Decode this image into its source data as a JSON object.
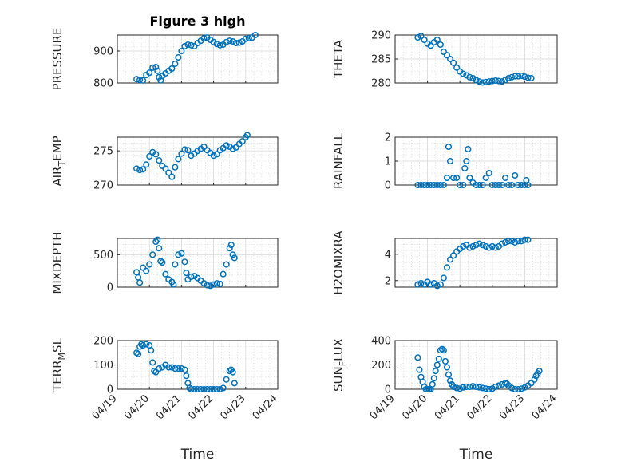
{
  "figure": {
    "title": "Figure 3 high",
    "marker_color": "#0072bd"
  },
  "chart_data": [
    {
      "type": "scatter",
      "position": "top-left",
      "title": "Figure 3 high",
      "ylabel": "PRESSURE",
      "ylim": [
        800,
        950
      ],
      "yticks": [
        800,
        900
      ],
      "xlim": [
        "04/19",
        "04/24"
      ],
      "xticks": [],
      "xlabel": "",
      "points": [
        [
          19.6,
          812
        ],
        [
          19.7,
          810
        ],
        [
          19.8,
          808
        ],
        [
          19.9,
          825
        ],
        [
          20.0,
          832
        ],
        [
          20.1,
          848
        ],
        [
          20.2,
          850
        ],
        [
          20.25,
          838
        ],
        [
          20.3,
          818
        ],
        [
          20.35,
          808
        ],
        [
          20.4,
          822
        ],
        [
          20.5,
          830
        ],
        [
          20.6,
          838
        ],
        [
          20.7,
          845
        ],
        [
          20.8,
          860
        ],
        [
          20.9,
          880
        ],
        [
          21.0,
          900
        ],
        [
          21.1,
          915
        ],
        [
          21.2,
          920
        ],
        [
          21.3,
          918
        ],
        [
          21.4,
          915
        ],
        [
          21.5,
          925
        ],
        [
          21.6,
          932
        ],
        [
          21.7,
          940
        ],
        [
          21.8,
          942
        ],
        [
          21.9,
          935
        ],
        [
          22.0,
          928
        ],
        [
          22.1,
          922
        ],
        [
          22.2,
          918
        ],
        [
          22.3,
          920
        ],
        [
          22.4,
          928
        ],
        [
          22.5,
          932
        ],
        [
          22.6,
          930
        ],
        [
          22.7,
          925
        ],
        [
          22.8,
          926
        ],
        [
          22.9,
          930
        ],
        [
          23.0,
          938
        ],
        [
          23.1,
          940
        ],
        [
          23.2,
          942
        ],
        [
          23.3,
          950
        ]
      ]
    },
    {
      "type": "scatter",
      "position": "top-right",
      "ylabel": "THETA",
      "ylim": [
        280,
        290
      ],
      "yticks": [
        280,
        285,
        290
      ],
      "xlim": [
        "04/19",
        "04/24"
      ],
      "xticks": [],
      "xlabel": "",
      "points": [
        [
          19.7,
          289.5
        ],
        [
          19.8,
          289.8
        ],
        [
          19.9,
          289.0
        ],
        [
          20.0,
          288.2
        ],
        [
          20.1,
          287.8
        ],
        [
          20.2,
          288.5
        ],
        [
          20.3,
          289.0
        ],
        [
          20.4,
          288.0
        ],
        [
          20.5,
          286.5
        ],
        [
          20.6,
          285.8
        ],
        [
          20.7,
          285.0
        ],
        [
          20.8,
          284.2
        ],
        [
          20.9,
          283.2
        ],
        [
          21.0,
          282.4
        ],
        [
          21.1,
          281.9
        ],
        [
          21.2,
          281.6
        ],
        [
          21.3,
          281.2
        ],
        [
          21.4,
          281.0
        ],
        [
          21.5,
          280.6
        ],
        [
          21.6,
          280.3
        ],
        [
          21.7,
          280.1
        ],
        [
          21.8,
          280.2
        ],
        [
          21.9,
          280.3
        ],
        [
          22.0,
          280.4
        ],
        [
          22.1,
          280.5
        ],
        [
          22.2,
          280.4
        ],
        [
          22.3,
          280.3
        ],
        [
          22.4,
          280.6
        ],
        [
          22.5,
          281.0
        ],
        [
          22.6,
          281.2
        ],
        [
          22.7,
          281.4
        ],
        [
          22.8,
          281.4
        ],
        [
          22.9,
          281.5
        ],
        [
          23.0,
          281.3
        ],
        [
          23.1,
          281.1
        ],
        [
          23.2,
          281.0
        ]
      ]
    },
    {
      "type": "scatter",
      "position": "row2-left",
      "ylabel": "AIR_TEMP",
      "ylim": [
        270,
        277
      ],
      "yticks": [
        270,
        275
      ],
      "xlim": [
        "04/19",
        "04/24"
      ],
      "xticks": [],
      "xlabel": "",
      "points": [
        [
          19.6,
          272.4
        ],
        [
          19.7,
          272.2
        ],
        [
          19.8,
          272.3
        ],
        [
          19.9,
          273.0
        ],
        [
          20.0,
          274.2
        ],
        [
          20.1,
          274.8
        ],
        [
          20.2,
          274.5
        ],
        [
          20.3,
          273.6
        ],
        [
          20.4,
          272.8
        ],
        [
          20.5,
          272.4
        ],
        [
          20.6,
          271.8
        ],
        [
          20.7,
          271.2
        ],
        [
          20.8,
          272.6
        ],
        [
          20.9,
          273.8
        ],
        [
          21.0,
          274.6
        ],
        [
          21.1,
          275.2
        ],
        [
          21.2,
          275.1
        ],
        [
          21.3,
          274.3
        ],
        [
          21.4,
          274.6
        ],
        [
          21.5,
          275.0
        ],
        [
          21.6,
          275.3
        ],
        [
          21.7,
          275.6
        ],
        [
          21.8,
          275.1
        ],
        [
          21.9,
          274.7
        ],
        [
          22.0,
          274.3
        ],
        [
          22.1,
          274.5
        ],
        [
          22.2,
          275.1
        ],
        [
          22.3,
          275.4
        ],
        [
          22.4,
          275.8
        ],
        [
          22.5,
          275.6
        ],
        [
          22.6,
          275.3
        ],
        [
          22.7,
          275.5
        ],
        [
          22.8,
          276.0
        ],
        [
          22.9,
          276.4
        ],
        [
          23.0,
          277.0
        ],
        [
          23.05,
          277.3
        ]
      ]
    },
    {
      "type": "scatter",
      "position": "row2-right",
      "ylabel": "RAINFALL",
      "ylim": [
        0,
        2
      ],
      "yticks": [
        0,
        1,
        2
      ],
      "xlim": [
        "04/19",
        "04/24"
      ],
      "xticks": [],
      "xlabel": "",
      "points": [
        [
          19.7,
          0
        ],
        [
          19.8,
          0
        ],
        [
          19.9,
          0
        ],
        [
          20.0,
          0
        ],
        [
          20.1,
          0
        ],
        [
          20.2,
          0
        ],
        [
          20.3,
          0
        ],
        [
          20.4,
          0
        ],
        [
          20.5,
          0
        ],
        [
          20.6,
          0.3
        ],
        [
          20.65,
          1.6
        ],
        [
          20.7,
          1.0
        ],
        [
          20.8,
          0.3
        ],
        [
          20.9,
          0.3
        ],
        [
          21.0,
          0
        ],
        [
          21.1,
          0
        ],
        [
          21.15,
          0.7
        ],
        [
          21.2,
          1.0
        ],
        [
          21.25,
          1.5
        ],
        [
          21.3,
          0.3
        ],
        [
          21.4,
          0.1
        ],
        [
          21.5,
          0
        ],
        [
          21.6,
          0
        ],
        [
          21.7,
          0
        ],
        [
          21.8,
          0.3
        ],
        [
          21.9,
          0.5
        ],
        [
          22.0,
          0
        ],
        [
          22.1,
          0
        ],
        [
          22.2,
          0
        ],
        [
          22.3,
          0
        ],
        [
          22.4,
          0.3
        ],
        [
          22.5,
          0
        ],
        [
          22.6,
          0
        ],
        [
          22.7,
          0.4
        ],
        [
          22.8,
          0
        ],
        [
          22.9,
          0
        ],
        [
          23.0,
          0
        ],
        [
          23.05,
          0.2
        ],
        [
          23.1,
          0
        ]
      ]
    },
    {
      "type": "scatter",
      "position": "row3-left",
      "ylabel": "MIXDEPTH",
      "ylim": [
        0,
        750
      ],
      "yticks": [
        0,
        500
      ],
      "xlim": [
        "04/19",
        "04/24"
      ],
      "xticks": [],
      "xlabel": "",
      "points": [
        [
          19.6,
          230
        ],
        [
          19.65,
          150
        ],
        [
          19.7,
          70
        ],
        [
          19.8,
          300
        ],
        [
          19.9,
          250
        ],
        [
          20.0,
          350
        ],
        [
          20.1,
          500
        ],
        [
          20.2,
          700
        ],
        [
          20.25,
          730
        ],
        [
          20.3,
          600
        ],
        [
          20.35,
          400
        ],
        [
          20.4,
          380
        ],
        [
          20.5,
          200
        ],
        [
          20.6,
          120
        ],
        [
          20.7,
          80
        ],
        [
          20.75,
          40
        ],
        [
          20.8,
          350
        ],
        [
          20.9,
          500
        ],
        [
          21.0,
          520
        ],
        [
          21.1,
          390
        ],
        [
          21.15,
          220
        ],
        [
          21.2,
          120
        ],
        [
          21.3,
          160
        ],
        [
          21.4,
          170
        ],
        [
          21.5,
          140
        ],
        [
          21.6,
          100
        ],
        [
          21.7,
          60
        ],
        [
          21.8,
          30
        ],
        [
          21.9,
          20
        ],
        [
          22.0,
          40
        ],
        [
          22.1,
          60
        ],
        [
          22.2,
          50
        ],
        [
          22.3,
          200
        ],
        [
          22.4,
          350
        ],
        [
          22.5,
          600
        ],
        [
          22.55,
          650
        ],
        [
          22.6,
          500
        ],
        [
          22.65,
          450
        ]
      ]
    },
    {
      "type": "scatter",
      "position": "row3-right",
      "ylabel": "H2OMIXRA",
      "ylim": [
        1.5,
        5.2
      ],
      "yticks": [
        2,
        4
      ],
      "xlim": [
        "04/19",
        "04/24"
      ],
      "xticks": [],
      "xlabel": "",
      "points": [
        [
          19.7,
          1.7
        ],
        [
          19.8,
          1.8
        ],
        [
          19.9,
          1.7
        ],
        [
          20.0,
          1.9
        ],
        [
          20.1,
          1.7
        ],
        [
          20.2,
          1.8
        ],
        [
          20.3,
          1.6
        ],
        [
          20.4,
          1.7
        ],
        [
          20.5,
          2.2
        ],
        [
          20.6,
          3.0
        ],
        [
          20.7,
          3.6
        ],
        [
          20.8,
          3.9
        ],
        [
          20.9,
          4.2
        ],
        [
          21.0,
          4.4
        ],
        [
          21.1,
          4.6
        ],
        [
          21.2,
          4.7
        ],
        [
          21.3,
          4.5
        ],
        [
          21.4,
          4.6
        ],
        [
          21.5,
          4.7
        ],
        [
          21.6,
          4.8
        ],
        [
          21.7,
          4.7
        ],
        [
          21.8,
          4.6
        ],
        [
          21.9,
          4.5
        ],
        [
          22.0,
          4.6
        ],
        [
          22.1,
          4.5
        ],
        [
          22.2,
          4.6
        ],
        [
          22.3,
          4.8
        ],
        [
          22.4,
          4.9
        ],
        [
          22.5,
          5.0
        ],
        [
          22.6,
          5.0
        ],
        [
          22.7,
          4.9
        ],
        [
          22.8,
          5.0
        ],
        [
          22.9,
          5.0
        ],
        [
          23.0,
          5.1
        ],
        [
          23.1,
          5.1
        ]
      ]
    },
    {
      "type": "scatter",
      "position": "bottom-left",
      "ylabel": "TERR_MSL",
      "ylim": [
        0,
        200
      ],
      "yticks": [
        0,
        100,
        200
      ],
      "xlim": [
        "04/19",
        "04/24"
      ],
      "xticks": [
        "04/19",
        "04/20",
        "04/21",
        "04/22",
        "04/23",
        "04/24"
      ],
      "xlabel": "Time",
      "points": [
        [
          19.6,
          150
        ],
        [
          19.65,
          145
        ],
        [
          19.7,
          175
        ],
        [
          19.75,
          185
        ],
        [
          19.8,
          180
        ],
        [
          19.9,
          185
        ],
        [
          20.0,
          180
        ],
        [
          20.05,
          160
        ],
        [
          20.1,
          110
        ],
        [
          20.15,
          75
        ],
        [
          20.2,
          70
        ],
        [
          20.3,
          85
        ],
        [
          20.4,
          90
        ],
        [
          20.5,
          100
        ],
        [
          20.6,
          90
        ],
        [
          20.7,
          90
        ],
        [
          20.8,
          85
        ],
        [
          20.9,
          85
        ],
        [
          21.0,
          85
        ],
        [
          21.1,
          80
        ],
        [
          21.15,
          55
        ],
        [
          21.2,
          25
        ],
        [
          21.25,
          5
        ],
        [
          21.3,
          0
        ],
        [
          21.4,
          0
        ],
        [
          21.5,
          0
        ],
        [
          21.6,
          0
        ],
        [
          21.7,
          0
        ],
        [
          21.8,
          0
        ],
        [
          21.9,
          0
        ],
        [
          22.0,
          0
        ],
        [
          22.1,
          0
        ],
        [
          22.2,
          0
        ],
        [
          22.3,
          5
        ],
        [
          22.4,
          40
        ],
        [
          22.5,
          75
        ],
        [
          22.55,
          80
        ],
        [
          22.6,
          70
        ],
        [
          22.65,
          25
        ]
      ]
    },
    {
      "type": "scatter",
      "position": "bottom-right",
      "ylabel": "SUN_FLUX",
      "ylim": [
        0,
        400
      ],
      "yticks": [
        0,
        200,
        400
      ],
      "xlim": [
        "04/19",
        "04/24"
      ],
      "xticks": [
        "04/19",
        "04/20",
        "04/21",
        "04/22",
        "04/23",
        "04/24"
      ],
      "xlabel": "Time",
      "points": [
        [
          19.7,
          260
        ],
        [
          19.75,
          160
        ],
        [
          19.8,
          100
        ],
        [
          19.85,
          60
        ],
        [
          19.9,
          20
        ],
        [
          19.95,
          0
        ],
        [
          20.0,
          0
        ],
        [
          20.05,
          0
        ],
        [
          20.1,
          0
        ],
        [
          20.15,
          40
        ],
        [
          20.2,
          90
        ],
        [
          20.25,
          150
        ],
        [
          20.3,
          200
        ],
        [
          20.35,
          250
        ],
        [
          20.4,
          320
        ],
        [
          20.45,
          330
        ],
        [
          20.5,
          320
        ],
        [
          20.55,
          230
        ],
        [
          20.6,
          180
        ],
        [
          20.65,
          120
        ],
        [
          20.7,
          70
        ],
        [
          20.75,
          40
        ],
        [
          20.8,
          20
        ],
        [
          20.9,
          10
        ],
        [
          21.0,
          5
        ],
        [
          21.1,
          15
        ],
        [
          21.2,
          20
        ],
        [
          21.3,
          20
        ],
        [
          21.4,
          25
        ],
        [
          21.5,
          20
        ],
        [
          21.6,
          15
        ],
        [
          21.7,
          10
        ],
        [
          21.8,
          5
        ],
        [
          21.9,
          0
        ],
        [
          22.0,
          5
        ],
        [
          22.1,
          20
        ],
        [
          22.2,
          30
        ],
        [
          22.3,
          40
        ],
        [
          22.4,
          50
        ],
        [
          22.45,
          45
        ],
        [
          22.5,
          30
        ],
        [
          22.6,
          10
        ],
        [
          22.7,
          0
        ],
        [
          22.8,
          0
        ],
        [
          22.9,
          5
        ],
        [
          23.0,
          15
        ],
        [
          23.1,
          30
        ],
        [
          23.2,
          50
        ],
        [
          23.3,
          80
        ],
        [
          23.35,
          110
        ],
        [
          23.4,
          130
        ],
        [
          23.45,
          150
        ]
      ]
    }
  ]
}
